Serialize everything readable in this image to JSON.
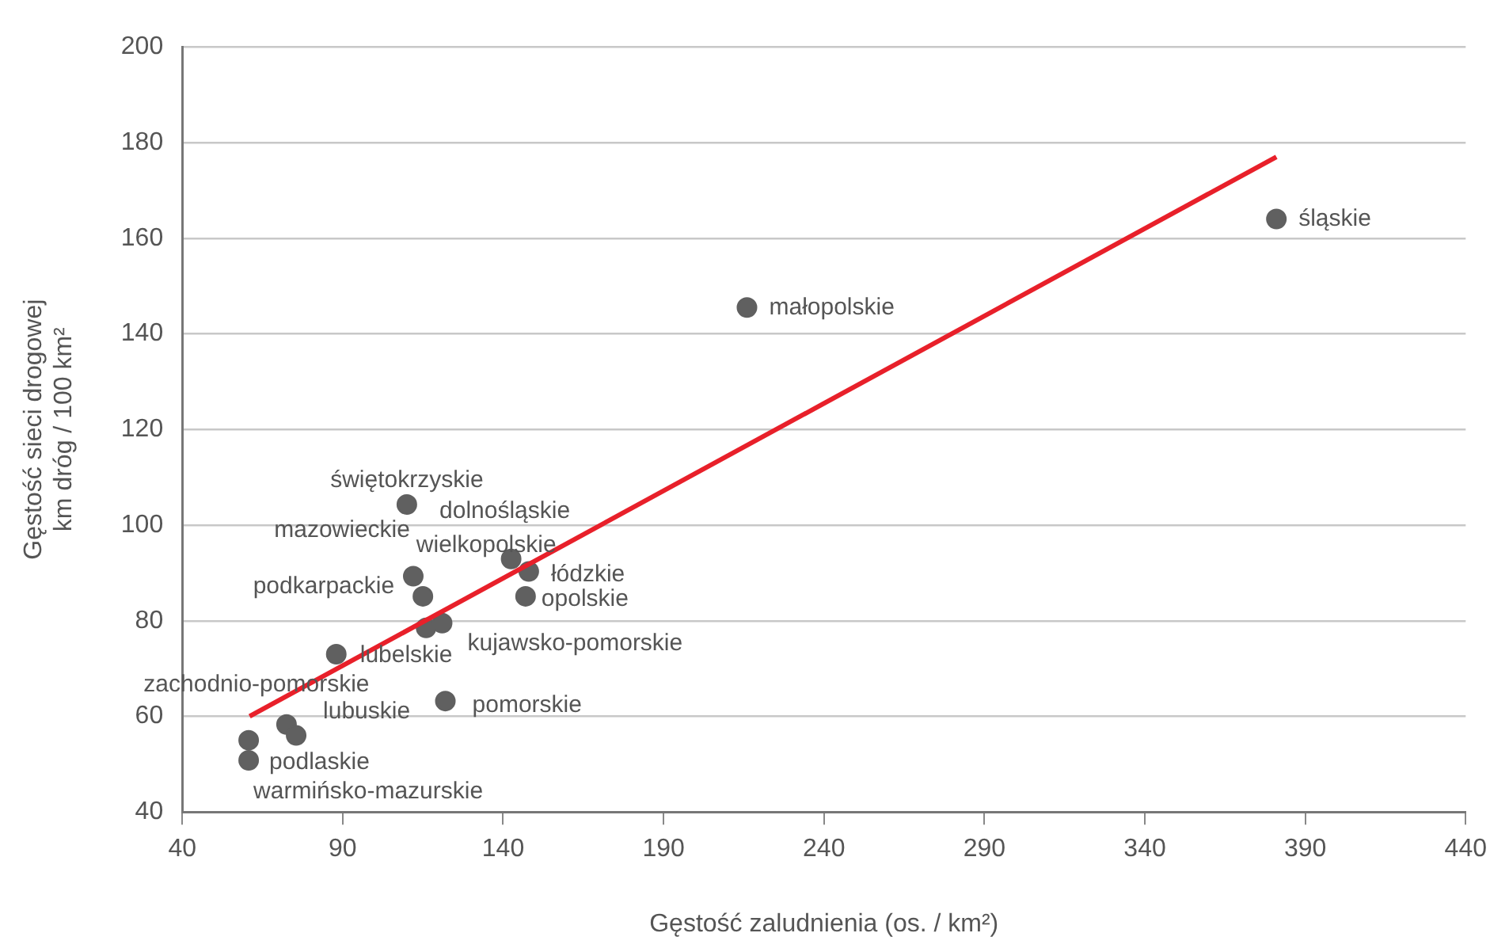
{
  "chart_data": {
    "type": "scatter",
    "xlabel": "Gęstość zaludnienia (os. / km²)",
    "ylabel": "Gęstość sieci drogowej\nkm dróg / 100 km²",
    "xlim": [
      40,
      440
    ],
    "xticks": [
      40,
      90,
      140,
      190,
      240,
      290,
      340,
      390,
      440
    ],
    "ylim": [
      40,
      200
    ],
    "yticks": [
      40,
      60,
      80,
      100,
      120,
      140,
      160,
      180,
      200
    ],
    "grid": "y",
    "legend": false,
    "marker": "circle",
    "series": [
      {
        "type": "scatter",
        "color": "#606060",
        "x": [
          381,
          216,
          110,
          142.5,
          116,
          148,
          147,
          112,
          115,
          121,
          88,
          122,
          72.5,
          75.5,
          60.7,
          60.7
        ],
        "values": [
          164,
          145.5,
          104.3,
          92.9,
          78.5,
          90.3,
          85.1,
          89.3,
          85.1,
          79.5,
          73,
          63.2,
          58.3,
          56,
          55,
          50.8
        ]
      },
      {
        "type": "line",
        "color": "#e8202a",
        "x": [
          61,
          381
        ],
        "values": [
          60,
          177
        ],
        "marker": "none"
      }
    ],
    "annotations": [
      {
        "text": "śląskie",
        "x": 381,
        "y": 164
      },
      {
        "text": "małopolskie",
        "x": 216,
        "y": 145.5
      },
      {
        "text": "świętokrzyskie",
        "x": 110,
        "y": 104.3
      },
      {
        "text": "dolnośląskie",
        "x": 142.5,
        "y": 92.9
      },
      {
        "text": "wielkopolskie",
        "x": 116,
        "y": 78.5
      },
      {
        "text": "łódzkie",
        "x": 148,
        "y": 90.3
      },
      {
        "text": "opolskie",
        "x": 147,
        "y": 85.1
      },
      {
        "text": "mazowieckie",
        "x": 112,
        "y": 89.3
      },
      {
        "text": "podkarpackie",
        "x": 115,
        "y": 85.1
      },
      {
        "text": "kujawsko-pomorskie",
        "x": 121,
        "y": 79.5
      },
      {
        "text": "lubelskie",
        "x": 88,
        "y": 73
      },
      {
        "text": "pomorskie",
        "x": 122,
        "y": 63.2
      },
      {
        "text": "zachodnio-pomorskie",
        "x": 72.5,
        "y": 58.3
      },
      {
        "text": "lubuskie",
        "x": 75.5,
        "y": 56
      },
      {
        "text": "podlaskie",
        "x": 60.7,
        "y": 55
      },
      {
        "text": "warmińsko-mazurskie",
        "x": 60.7,
        "y": 50.8
      }
    ]
  }
}
